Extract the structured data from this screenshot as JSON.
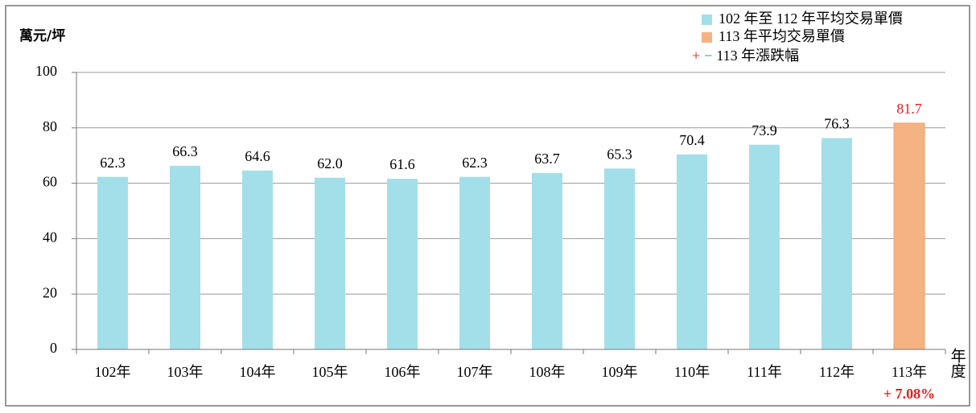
{
  "chart_data": {
    "type": "bar",
    "y_label": "萬元/坪",
    "x_label": "年度",
    "categories": [
      "102年",
      "103年",
      "104年",
      "105年",
      "106年",
      "107年",
      "108年",
      "109年",
      "110年",
      "111年",
      "112年",
      "113年"
    ],
    "series": [
      {
        "name": "102 年至 112 年平均交易單價",
        "color": "#a3dfe9",
        "label_color": "#000000",
        "values": [
          62.3,
          66.3,
          64.6,
          62.0,
          61.6,
          62.3,
          63.7,
          65.3,
          70.4,
          73.9,
          76.3,
          null
        ],
        "value_labels": [
          "62.3",
          "66.3",
          "64.6",
          "62.0",
          "61.6",
          "62.3",
          "63.7",
          "65.3",
          "70.4",
          "73.9",
          "76.3",
          null
        ]
      },
      {
        "name": "113 年平均交易單價",
        "color": "#f5b283",
        "label_color": "#e0201f",
        "values": [
          null,
          null,
          null,
          null,
          null,
          null,
          null,
          null,
          null,
          null,
          null,
          81.7
        ],
        "value_labels": [
          null,
          null,
          null,
          null,
          null,
          null,
          null,
          null,
          null,
          null,
          null,
          "81.7"
        ]
      }
    ],
    "change_legend": {
      "plus": "+",
      "plus_color": "#e0201f",
      "minus": "−",
      "minus_color": "#1f9a3a",
      "label": "113 年漲跌幅"
    },
    "change": {
      "value": 7.08,
      "label": "+ 7.08%",
      "color": "#e0201f"
    },
    "ylim": [
      0,
      100
    ],
    "yticks": [
      0,
      20,
      40,
      60,
      80,
      100
    ],
    "grid": true
  }
}
